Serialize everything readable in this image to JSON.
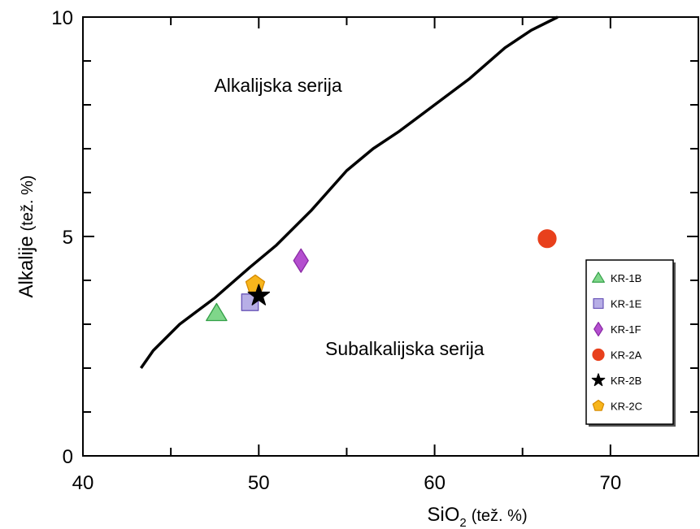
{
  "chart_data": {
    "type": "scatter",
    "xlabel": {
      "main": "SiO",
      "subscript": "2",
      "unit": "(tež. %)"
    },
    "ylabel": {
      "main": "Alkalije",
      "unit": "(tež. %)"
    },
    "xlim": [
      40,
      75
    ],
    "ylim": [
      0,
      10
    ],
    "x_ticks": [
      "40",
      "50",
      "60",
      "70"
    ],
    "y_ticks": [
      "0",
      "5",
      "10"
    ],
    "grid": false,
    "legend_position": "right",
    "region_labels": [
      {
        "text": "Alkalijska serija",
        "x": 51.1,
        "y": 8.3
      },
      {
        "text": "Subalkalijska serija",
        "x": 58.3,
        "y": 2.3
      }
    ],
    "boundary_line": {
      "x": [
        43.3,
        44.0,
        45.5,
        47.5,
        49.5,
        51.0,
        53.0,
        55.0,
        56.5,
        58.0,
        60.0,
        62.0,
        64.0,
        65.5,
        67.0
      ],
      "y": [
        2.0,
        2.4,
        3.0,
        3.6,
        4.3,
        4.8,
        5.6,
        6.5,
        7.0,
        7.4,
        8.0,
        8.6,
        9.3,
        9.7,
        10.0
      ]
    },
    "series": [
      {
        "name": "KR-1B",
        "marker": "triangle",
        "color": "#7fd68a",
        "stroke": "#33a047",
        "x": 47.6,
        "y": 3.25
      },
      {
        "name": "KR-1E",
        "marker": "square",
        "color": "#b7aee6",
        "stroke": "#6a55b8",
        "x": 49.5,
        "y": 3.5
      },
      {
        "name": "KR-1F",
        "marker": "diamond",
        "color": "#b44fcf",
        "stroke": "#8a2aa5",
        "x": 52.4,
        "y": 4.45
      },
      {
        "name": "KR-2A",
        "marker": "circle",
        "color": "#e8401c",
        "stroke": "#e8401c",
        "x": 66.4,
        "y": 4.95
      },
      {
        "name": "KR-2B",
        "marker": "star",
        "color": "#000000",
        "stroke": "#000000",
        "x": 50.0,
        "y": 3.65
      },
      {
        "name": "KR-2C",
        "marker": "pentagon",
        "color": "#f7b51c",
        "stroke": "#d68a00",
        "x": 49.8,
        "y": 3.9
      }
    ]
  }
}
